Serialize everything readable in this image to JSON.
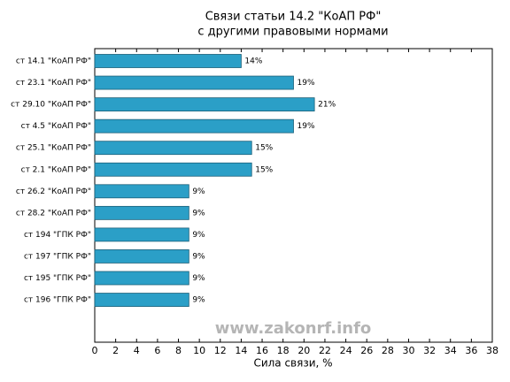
{
  "chart_data": {
    "type": "barh",
    "title": "Связи статьи 14.2 \"КоАП РФ\"",
    "subtitle": "с другими правовыми нормами",
    "xlabel": "Сила связи, %",
    "annotation": "www.zakonrf.info",
    "categories": [
      "ст 14.1 \"КоАП РФ\"",
      "ст 23.1 \"КоАП РФ\"",
      "ст 29.10 \"КоАП РФ\"",
      "ст 4.5 \"КоАП РФ\"",
      "ст 25.1 \"КоАП РФ\"",
      "ст 2.1 \"КоАП РФ\"",
      "ст 26.2 \"КоАП РФ\"",
      "ст 28.2 \"КоАП РФ\"",
      "ст 194 \"ГПК РФ\"",
      "ст 197 \"ГПК РФ\"",
      "ст 195 \"ГПК РФ\"",
      "ст 196 \"ГПК РФ\""
    ],
    "values": [
      14,
      19,
      21,
      19,
      15,
      15,
      9,
      9,
      9,
      9,
      9,
      9
    ],
    "value_labels": [
      "14%",
      "19%",
      "21%",
      "19%",
      "15%",
      "15%",
      "9%",
      "9%",
      "9%",
      "9%",
      "9%",
      "9%"
    ],
    "color": "#2b9fc7",
    "xlim": [
      0,
      38
    ],
    "xticks": [
      0,
      2,
      4,
      6,
      8,
      10,
      12,
      14,
      16,
      18,
      20,
      22,
      24,
      26,
      28,
      30,
      32,
      34,
      36,
      38
    ]
  }
}
